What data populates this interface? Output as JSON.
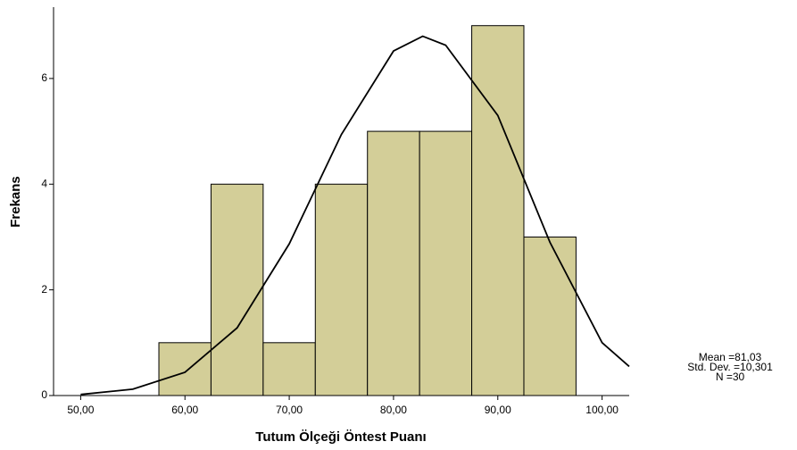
{
  "chart_data": {
    "type": "histogram",
    "bins": [
      57.5,
      62.5,
      67.5,
      72.5,
      77.5,
      82.5,
      87.5,
      92.5,
      97.5
    ],
    "counts": [
      1,
      4,
      1,
      4,
      5,
      5,
      7,
      3
    ],
    "color": "#d3ce98",
    "curve": {
      "x": [
        50,
        55,
        60,
        65,
        70,
        75,
        80,
        82.8,
        85,
        90,
        95,
        100,
        102.6
      ],
      "y": [
        0.02,
        0.12,
        0.44,
        1.28,
        2.87,
        4.94,
        6.52,
        6.8,
        6.63,
        5.3,
        2.9,
        1.0,
        0.55
      ]
    },
    "xlabel": "Tutum Ölçeği Öntest Puanı",
    "ylabel": "Frekans",
    "xlim": [
      47.4,
      102.6
    ],
    "ylim": [
      0,
      7.35
    ],
    "xticks": [
      {
        "value": 50,
        "label": "50,00"
      },
      {
        "value": 60,
        "label": "60,00"
      },
      {
        "value": 70,
        "label": "70,00"
      },
      {
        "value": 80,
        "label": "80,00"
      },
      {
        "value": 90,
        "label": "90,00"
      },
      {
        "value": 100,
        "label": "100,00"
      }
    ],
    "yticks": [
      0,
      2,
      4,
      6
    ],
    "annotations": [
      "Mean =81,03",
      "Std. Dev. =10,301",
      "N =30"
    ]
  }
}
